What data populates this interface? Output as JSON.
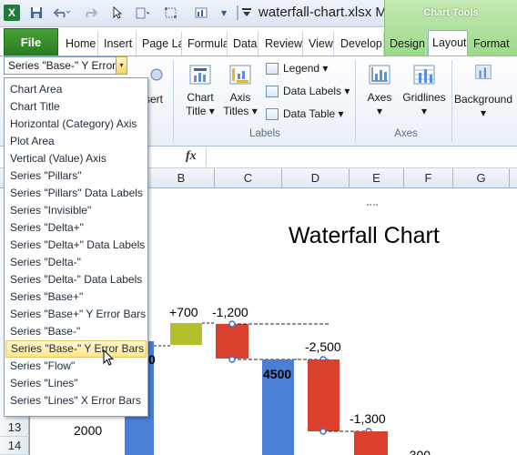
{
  "window": {
    "title": "waterfall-chart.xlsx  M",
    "app_icon_label": "X"
  },
  "context_tab": {
    "label": "Chart Tools"
  },
  "tabs": [
    "File",
    "Home",
    "Insert",
    "Page La",
    "Formula",
    "Data",
    "Review",
    "View",
    "Develop",
    "Design",
    "Layout",
    "Format"
  ],
  "ribbon": {
    "insert_label": "sert",
    "chart_title": {
      "line1": "Chart",
      "line2": "Title ▾"
    },
    "axis_titles": {
      "line1": "Axis",
      "line2": "Titles ▾"
    },
    "legend": "Legend ▾",
    "data_labels": "Data Labels ▾",
    "data_table": "Data Table ▾",
    "axes": {
      "line1": "Axes",
      "line2": "▾"
    },
    "gridlines": {
      "line1": "Gridlines",
      "line2": "▾"
    },
    "background": {
      "line1": "Background",
      "line2": "▾"
    },
    "groups": {
      "labels": "Labels",
      "axes": "Axes"
    }
  },
  "formula_bar": {
    "fx": "fx"
  },
  "columns": [
    "B",
    "C",
    "D",
    "E",
    "F",
    "G"
  ],
  "rows": [
    "13",
    "14"
  ],
  "name_box": {
    "value": "Series \"Base-\" Y Error",
    "dropdown": "▾"
  },
  "dropdown_menu": {
    "items": [
      "Chart Area",
      "Chart Title",
      "Horizontal (Category) Axis",
      "Plot Area",
      "Vertical (Value) Axis",
      "Series \"Pillars\"",
      "Series \"Pillars\" Data Labels",
      "Series \"Invisible\"",
      "Series \"Delta+\"",
      "Series \"Delta+\" Data Labels",
      "Series \"Delta-\"",
      "Series \"Delta-\" Data Labels",
      "Series \"Base+\"",
      "Series \"Base+\" Y Error Bars",
      "Series \"Base-\"",
      "Series \"Base-\" Y Error Bars",
      "Series \"Flow\"",
      "Series \"Lines\"",
      "Series \"Lines\" X Error Bars"
    ],
    "selected_index": 15
  },
  "chart": {
    "title": "Waterfall Chart",
    "y_tick": "2000",
    "labels": {
      "pillar1": "0",
      "delta_plus": "+700",
      "delta_minus1": "-1,200",
      "pillar2": "4500",
      "delta_minus2": "-2,500",
      "delta_minus3": "-1,300",
      "partial": "-300"
    },
    "colors": {
      "pillar": "#4a7fd3",
      "delta_plus": "#b5bf2d",
      "delta_minus": "#d9412e",
      "connector": "#222222",
      "marker": "#3b6fc9"
    }
  }
}
